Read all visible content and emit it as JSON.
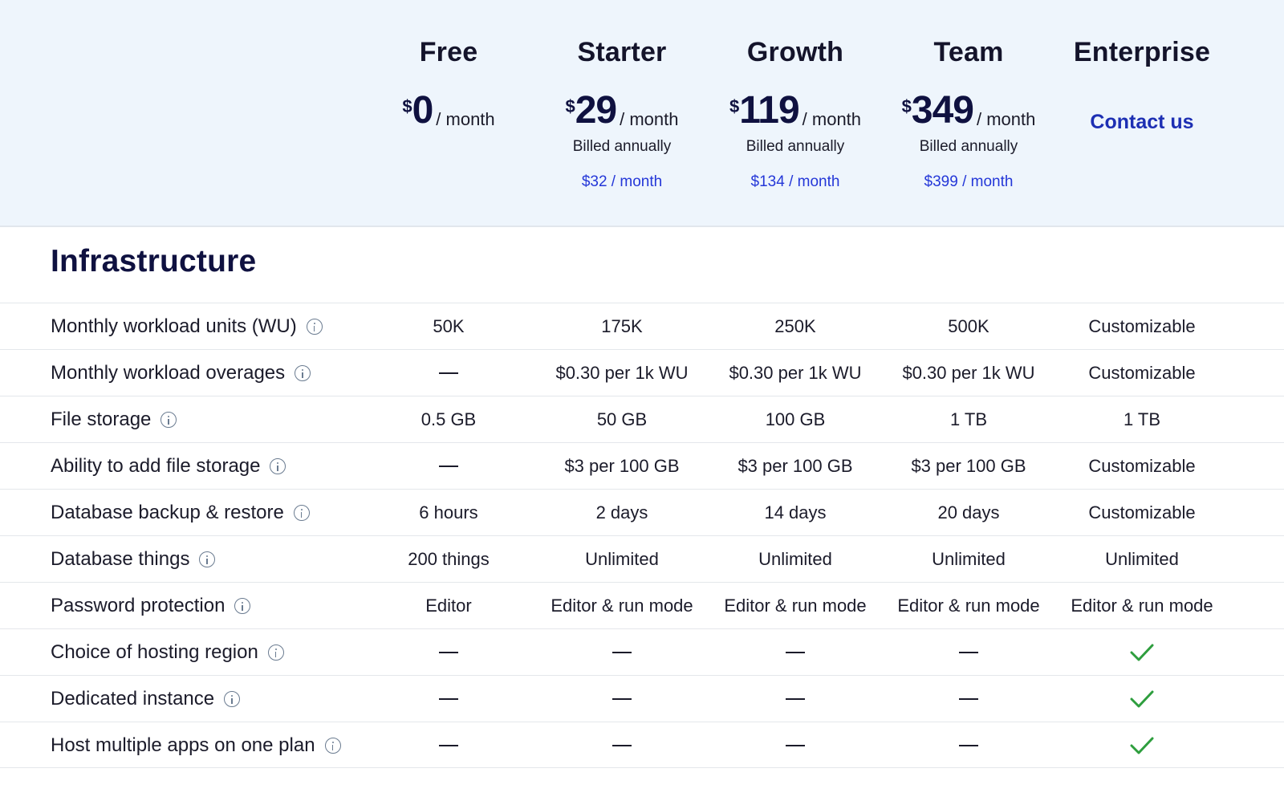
{
  "plans": [
    {
      "name": "Free",
      "currency": "$",
      "amount": "0",
      "per": "/ month",
      "billed": "",
      "monthly": "",
      "contact": ""
    },
    {
      "name": "Starter",
      "currency": "$",
      "amount": "29",
      "per": "/ month",
      "billed": "Billed annually",
      "monthly": "$32 / month",
      "contact": ""
    },
    {
      "name": "Growth",
      "currency": "$",
      "amount": "119",
      "per": "/ month",
      "billed": "Billed annually",
      "monthly": "$134 / month",
      "contact": ""
    },
    {
      "name": "Team",
      "currency": "$",
      "amount": "349",
      "per": "/ month",
      "billed": "Billed annually",
      "monthly": "$399 / month",
      "contact": ""
    },
    {
      "name": "Enterprise",
      "currency": "",
      "amount": "",
      "per": "",
      "billed": "",
      "monthly": "",
      "contact": "Contact us"
    }
  ],
  "section": {
    "title": "Infrastructure"
  },
  "colors": {
    "accent": "#2437d8",
    "check": "#2e9e3e",
    "header_bg": "#eef5fc",
    "heading": "#0f1140"
  },
  "features": [
    {
      "label": "Monthly workload units (WU)",
      "icon": "info-icon",
      "values": [
        "50K",
        "175K",
        "250K",
        "500K",
        "Customizable"
      ]
    },
    {
      "label": "Monthly workload overages",
      "icon": "info-icon",
      "values": [
        "—",
        "$0.30 per 1k WU",
        "$0.30 per 1k WU",
        "$0.30 per 1k WU",
        "Customizable"
      ]
    },
    {
      "label": "File storage",
      "icon": "info-icon",
      "values": [
        "0.5 GB",
        "50 GB",
        "100 GB",
        "1 TB",
        "1 TB"
      ]
    },
    {
      "label": "Ability to add file storage",
      "icon": "info-icon",
      "values": [
        "—",
        "$3 per 100 GB",
        "$3 per 100 GB",
        "$3 per 100 GB",
        "Customizable"
      ]
    },
    {
      "label": "Database backup & restore",
      "icon": "info-icon",
      "values": [
        "6 hours",
        "2 days",
        "14 days",
        "20 days",
        "Customizable"
      ]
    },
    {
      "label": "Database things",
      "icon": "info-icon",
      "values": [
        "200 things",
        "Unlimited",
        "Unlimited",
        "Unlimited",
        "Unlimited"
      ]
    },
    {
      "label": "Password protection",
      "icon": "info-icon",
      "values": [
        "Editor",
        "Editor & run mode",
        "Editor & run mode",
        "Editor & run mode",
        "Editor & run mode"
      ]
    },
    {
      "label": "Choice of hosting region",
      "icon": "info-icon",
      "values": [
        "—",
        "—",
        "—",
        "—",
        "check"
      ]
    },
    {
      "label": "Dedicated instance",
      "icon": "info-icon",
      "values": [
        "—",
        "—",
        "—",
        "—",
        "check"
      ]
    },
    {
      "label": "Host multiple apps on one plan",
      "icon": "info-icon",
      "values": [
        "—",
        "—",
        "—",
        "—",
        "check"
      ]
    }
  ]
}
